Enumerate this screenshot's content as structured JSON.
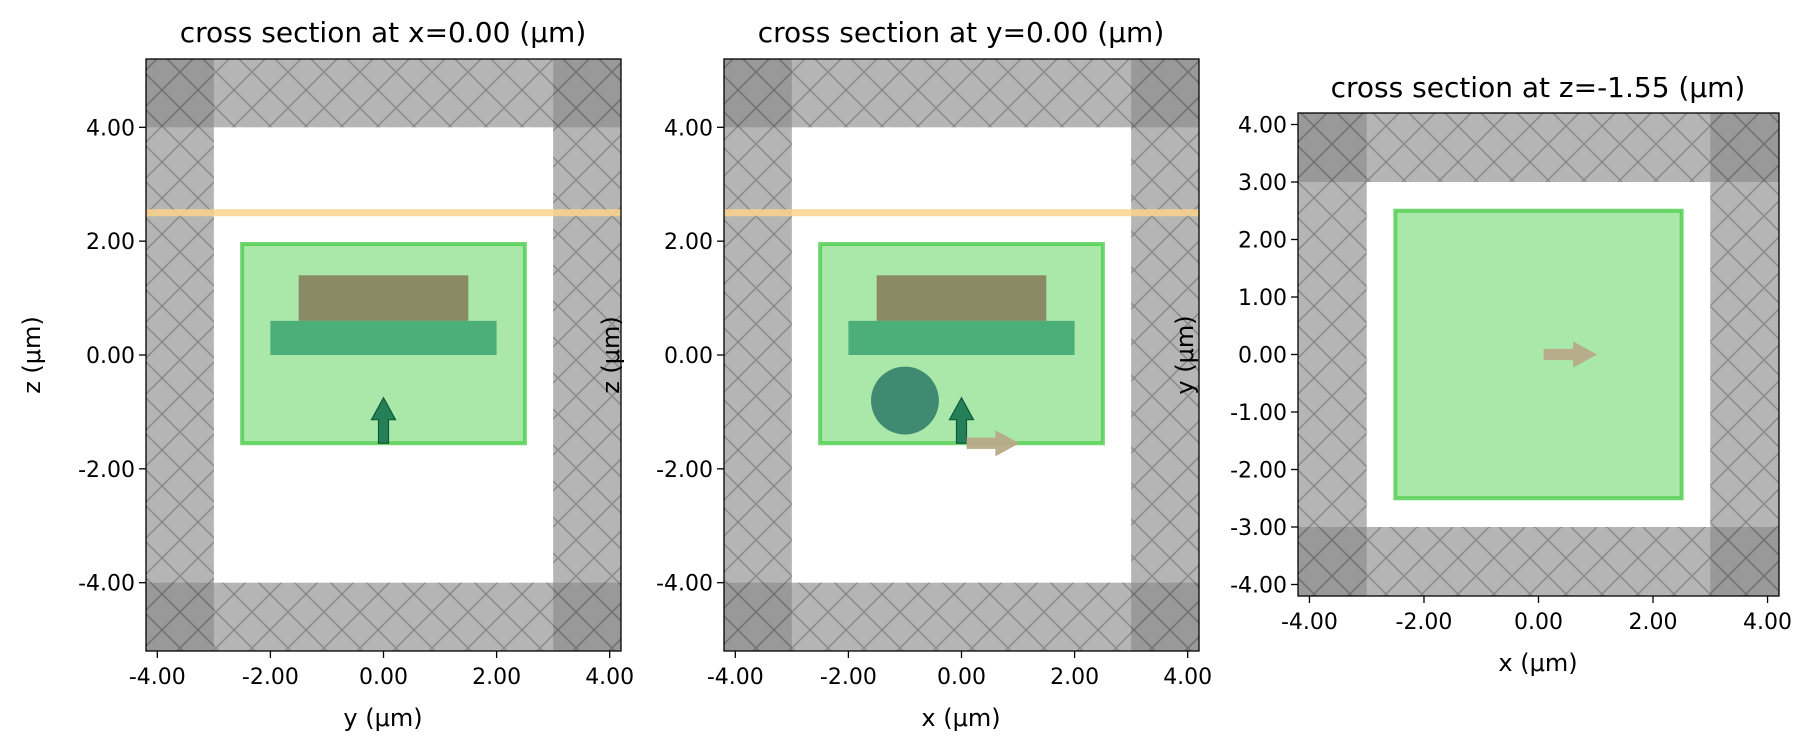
{
  "colors": {
    "pml": "#888888",
    "pml_corner": "#777777",
    "hatch": "#6a6a6a",
    "monitor_fill": "#8ee08e",
    "monitor_edge": "#4ccc4c",
    "ridge": "#8a8a64",
    "slab": "#4caf7a",
    "cylinder": "#3f8a70",
    "source_arrow": "#1d7a52",
    "flux_arrow": "#b8aa88",
    "plane_line": "#fcd38c"
  },
  "chart_data": [
    {
      "type": "cross_section",
      "title": "cross section at x=0.00 (μm)",
      "xlabel": "y (μm)",
      "ylabel": "z (μm)",
      "xlim": [
        -4.2,
        4.2
      ],
      "ylim": [
        -5.2,
        5.2
      ],
      "xticks": [
        -4,
        -2,
        0,
        2,
        4
      ],
      "yticks": [
        -4,
        -2,
        0,
        2,
        4
      ],
      "xtick_labels": [
        "-4.00",
        "-2.00",
        "0.00",
        "2.00",
        "4.00"
      ],
      "ytick_labels": [
        "-4.00",
        "-2.00",
        "0.00",
        "2.00",
        "4.00"
      ],
      "domain": {
        "x": [
          -3,
          3
        ],
        "y": [
          -4,
          4
        ]
      },
      "monitor": {
        "x": [
          -2.5,
          2.5
        ],
        "y": [
          -1.55,
          1.95
        ]
      },
      "structures": [
        {
          "kind": "rect",
          "role": "ridge",
          "x": [
            -1.5,
            1.5
          ],
          "y": [
            0.6,
            1.4
          ]
        },
        {
          "kind": "rect",
          "role": "slab",
          "x": [
            -2.0,
            2.0
          ],
          "y": [
            0.0,
            0.6
          ]
        }
      ],
      "plane_line_y": 2.5,
      "arrows": [
        {
          "role": "source",
          "x": 0,
          "y": -1.55,
          "dx": 0,
          "dy": 0.8
        }
      ]
    },
    {
      "type": "cross_section",
      "title": "cross section at y=0.00 (μm)",
      "xlabel": "x (μm)",
      "ylabel": "z (μm)",
      "xlim": [
        -4.2,
        4.2
      ],
      "ylim": [
        -5.2,
        5.2
      ],
      "xticks": [
        -4,
        -2,
        0,
        2,
        4
      ],
      "yticks": [
        -4,
        -2,
        0,
        2,
        4
      ],
      "xtick_labels": [
        "-4.00",
        "-2.00",
        "0.00",
        "2.00",
        "4.00"
      ],
      "ytick_labels": [
        "-4.00",
        "-2.00",
        "0.00",
        "2.00",
        "4.00"
      ],
      "domain": {
        "x": [
          -3,
          3
        ],
        "y": [
          -4,
          4
        ]
      },
      "monitor": {
        "x": [
          -2.5,
          2.5
        ],
        "y": [
          -1.55,
          1.95
        ]
      },
      "structures": [
        {
          "kind": "rect",
          "role": "ridge",
          "x": [
            -1.5,
            1.5
          ],
          "y": [
            0.6,
            1.4
          ]
        },
        {
          "kind": "rect",
          "role": "slab",
          "x": [
            -2.0,
            2.0
          ],
          "y": [
            0.0,
            0.6
          ]
        },
        {
          "kind": "circle",
          "role": "cylinder",
          "cx": -1.0,
          "cy": -0.8,
          "r": 0.6
        }
      ],
      "plane_line_y": 2.5,
      "arrows": [
        {
          "role": "source",
          "x": 0,
          "y": -1.55,
          "dx": 0,
          "dy": 0.8
        },
        {
          "role": "flux",
          "x": 0.1,
          "y": -1.55,
          "dx": 0.9,
          "dy": 0
        }
      ]
    },
    {
      "type": "cross_section",
      "title": "cross section at z=-1.55 (μm)",
      "xlabel": "x (μm)",
      "ylabel": "y (μm)",
      "xlim": [
        -4.2,
        4.2
      ],
      "ylim": [
        -4.2,
        4.2
      ],
      "xticks": [
        -4,
        -2,
        0,
        2,
        4
      ],
      "yticks": [
        -4,
        -3,
        -2,
        -1,
        0,
        1,
        2,
        3,
        4
      ],
      "xtick_labels": [
        "-4.00",
        "-2.00",
        "0.00",
        "2.00",
        "4.00"
      ],
      "ytick_labels": [
        "-4.00",
        "-3.00",
        "-2.00",
        "-1.00",
        "0.00",
        "1.00",
        "2.00",
        "3.00",
        "4.00"
      ],
      "domain": {
        "x": [
          -3,
          3
        ],
        "y": [
          -3,
          3
        ]
      },
      "monitor": {
        "x": [
          -2.5,
          2.5
        ],
        "y": [
          -2.5,
          2.5
        ]
      },
      "structures": [],
      "plane_line_y": null,
      "arrows": [
        {
          "role": "flux",
          "x": 0.1,
          "y": 0,
          "dx": 0.9,
          "dy": 0
        }
      ]
    }
  ]
}
